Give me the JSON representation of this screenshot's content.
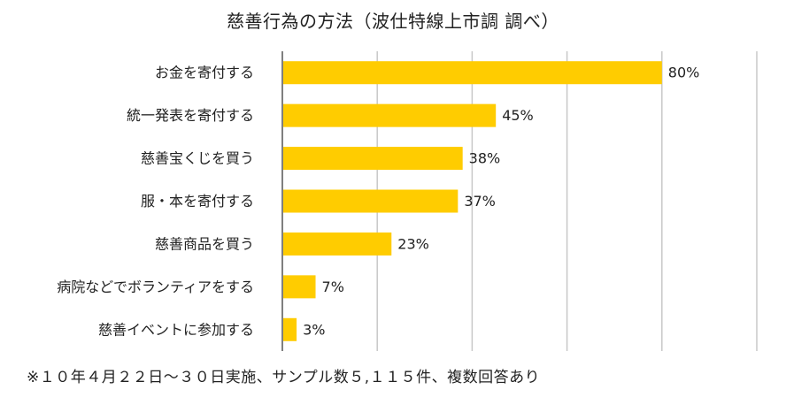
{
  "chart_data": {
    "type": "bar",
    "orientation": "horizontal",
    "title": "慈善行為の方法（波仕特線上市調 調べ）",
    "categories": [
      "お金を寄付する",
      "統一発表を寄付する",
      "慈善宝くじを買う",
      "服・本を寄付する",
      "慈善商品を買う",
      "病院などでボランティアをする",
      "慈善イベントに参加する"
    ],
    "values": [
      80,
      45,
      38,
      37,
      23,
      7,
      3
    ],
    "value_labels": [
      "80%",
      "45%",
      "38%",
      "37%",
      "23%",
      "7%",
      "3%"
    ],
    "xlim": [
      0,
      100
    ],
    "grid": true,
    "legend": "none",
    "bar_color": "#FFCC00",
    "gridline_color": "#C8C8C8",
    "axis_color": "#7F7F7F"
  },
  "footnote": "※１０年４月２２日～３０日実施、サンプル数５,１１５件、複数回答あり"
}
